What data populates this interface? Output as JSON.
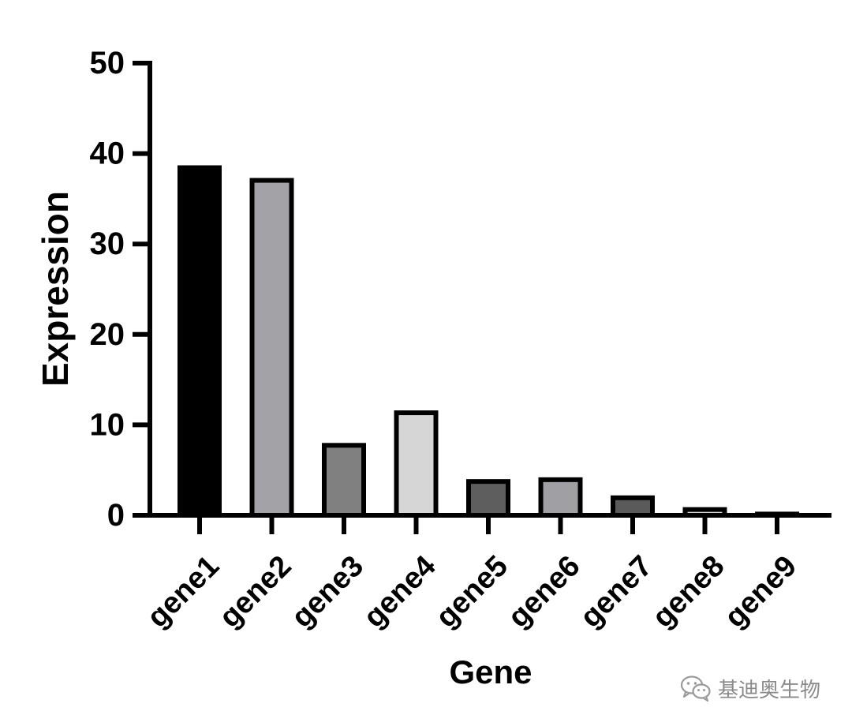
{
  "chart_data": {
    "type": "bar",
    "categories": [
      "gene1",
      "gene2",
      "gene3",
      "gene4",
      "gene5",
      "gene6",
      "gene7",
      "gene8",
      "gene9"
    ],
    "values": [
      38.7,
      37.3,
      8.0,
      11.6,
      4.0,
      4.2,
      2.2,
      0.9,
      0.4
    ],
    "bar_colors": [
      "#000000",
      "#a3a3a7",
      "#808080",
      "#d6d6d6",
      "#5e5e5e",
      "#a0a0a4",
      "#5a5a5a",
      "#d8d8d8",
      "#ffffff"
    ],
    "xlabel": "Gene",
    "ylabel": "Expression",
    "ylim": [
      0,
      50
    ],
    "yticks": [
      0,
      10,
      20,
      30,
      40,
      50
    ],
    "grid": false
  },
  "watermark": {
    "text": "基迪奥生物",
    "icon": "wechat-icon"
  }
}
